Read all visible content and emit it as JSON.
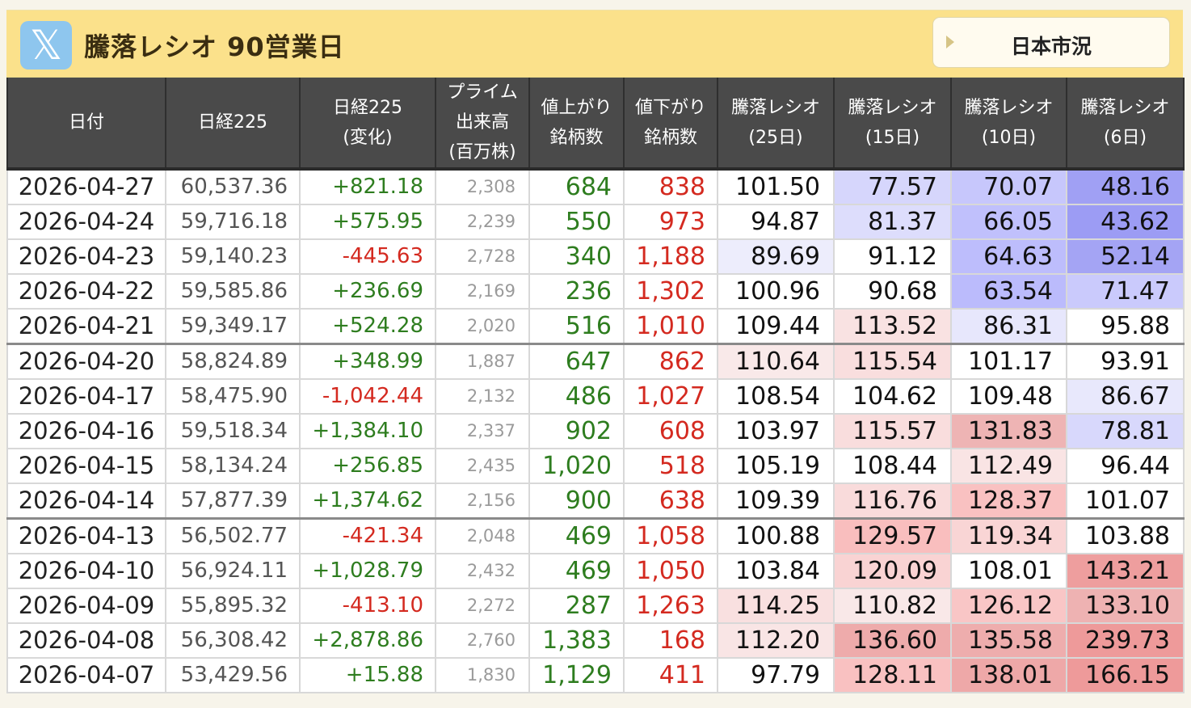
{
  "header": {
    "x_icon": "x-logo-icon",
    "title": "騰落レシオ 90営業日",
    "market_button": "日本市況"
  },
  "columns": [
    "日付",
    "日経225",
    "日経225\n(変化)",
    "プライム\n出来高\n(百万株)",
    "値上がり\n銘柄数",
    "値下がり\n銘柄数",
    "騰落レシオ\n(25日)",
    "騰落レシオ\n(15日)",
    "騰落レシオ\n(10日)",
    "騰落レシオ\n(6日)"
  ],
  "rows": [
    {
      "date": "2026-04-27",
      "nikkei": "60,537.36",
      "change": "+821.18",
      "volume": "2,308",
      "adv": "684",
      "dec": "838",
      "r25": "101.50",
      "r15": "77.57",
      "r10": "70.07",
      "r6": "48.16"
    },
    {
      "date": "2026-04-24",
      "nikkei": "59,716.18",
      "change": "+575.95",
      "volume": "2,239",
      "adv": "550",
      "dec": "973",
      "r25": "94.87",
      "r15": "81.37",
      "r10": "66.05",
      "r6": "43.62"
    },
    {
      "date": "2026-04-23",
      "nikkei": "59,140.23",
      "change": "-445.63",
      "volume": "2,728",
      "adv": "340",
      "dec": "1,188",
      "r25": "89.69",
      "r15": "91.12",
      "r10": "64.63",
      "r6": "52.14"
    },
    {
      "date": "2026-04-22",
      "nikkei": "59,585.86",
      "change": "+236.69",
      "volume": "2,169",
      "adv": "236",
      "dec": "1,302",
      "r25": "100.96",
      "r15": "90.68",
      "r10": "63.54",
      "r6": "71.47"
    },
    {
      "date": "2026-04-21",
      "nikkei": "59,349.17",
      "change": "+524.28",
      "volume": "2,020",
      "adv": "516",
      "dec": "1,010",
      "r25": "109.44",
      "r15": "113.52",
      "r10": "86.31",
      "r6": "95.88"
    },
    {
      "date": "2026-04-20",
      "nikkei": "58,824.89",
      "change": "+348.99",
      "volume": "1,887",
      "adv": "647",
      "dec": "862",
      "r25": "110.64",
      "r15": "115.54",
      "r10": "101.17",
      "r6": "93.91"
    },
    {
      "date": "2026-04-17",
      "nikkei": "58,475.90",
      "change": "-1,042.44",
      "volume": "2,132",
      "adv": "486",
      "dec": "1,027",
      "r25": "108.54",
      "r15": "104.62",
      "r10": "109.48",
      "r6": "86.67"
    },
    {
      "date": "2026-04-16",
      "nikkei": "59,518.34",
      "change": "+1,384.10",
      "volume": "2,337",
      "adv": "902",
      "dec": "608",
      "r25": "103.97",
      "r15": "115.57",
      "r10": "131.83",
      "r6": "78.81"
    },
    {
      "date": "2026-04-15",
      "nikkei": "58,134.24",
      "change": "+256.85",
      "volume": "2,435",
      "adv": "1,020",
      "dec": "518",
      "r25": "105.19",
      "r15": "108.44",
      "r10": "112.49",
      "r6": "96.44"
    },
    {
      "date": "2026-04-14",
      "nikkei": "57,877.39",
      "change": "+1,374.62",
      "volume": "2,156",
      "adv": "900",
      "dec": "638",
      "r25": "109.39",
      "r15": "116.76",
      "r10": "128.37",
      "r6": "101.07"
    },
    {
      "date": "2026-04-13",
      "nikkei": "56,502.77",
      "change": "-421.34",
      "volume": "2,048",
      "adv": "469",
      "dec": "1,058",
      "r25": "100.88",
      "r15": "129.57",
      "r10": "119.34",
      "r6": "103.88"
    },
    {
      "date": "2026-04-10",
      "nikkei": "56,924.11",
      "change": "+1,028.79",
      "volume": "2,432",
      "adv": "469",
      "dec": "1,050",
      "r25": "103.84",
      "r15": "120.09",
      "r10": "108.01",
      "r6": "143.21"
    },
    {
      "date": "2026-04-09",
      "nikkei": "55,895.32",
      "change": "-413.10",
      "volume": "2,272",
      "adv": "287",
      "dec": "1,263",
      "r25": "114.25",
      "r15": "110.82",
      "r10": "126.12",
      "r6": "133.10"
    },
    {
      "date": "2026-04-08",
      "nikkei": "56,308.42",
      "change": "+2,878.86",
      "volume": "2,760",
      "adv": "1,383",
      "dec": "168",
      "r25": "112.20",
      "r15": "136.60",
      "r10": "135.58",
      "r6": "239.73"
    },
    {
      "date": "2026-04-07",
      "nikkei": "53,429.56",
      "change": "+15.88",
      "volume": "1,830",
      "adv": "1,129",
      "dec": "411",
      "r25": "97.79",
      "r15": "128.11",
      "r10": "138.01",
      "r6": "166.15"
    }
  ],
  "colors": {
    "header_bg": "#fbe18b",
    "table_header_bg": "#4a4a4a",
    "positive": "#2e7d1f",
    "negative": "#d42a20"
  }
}
